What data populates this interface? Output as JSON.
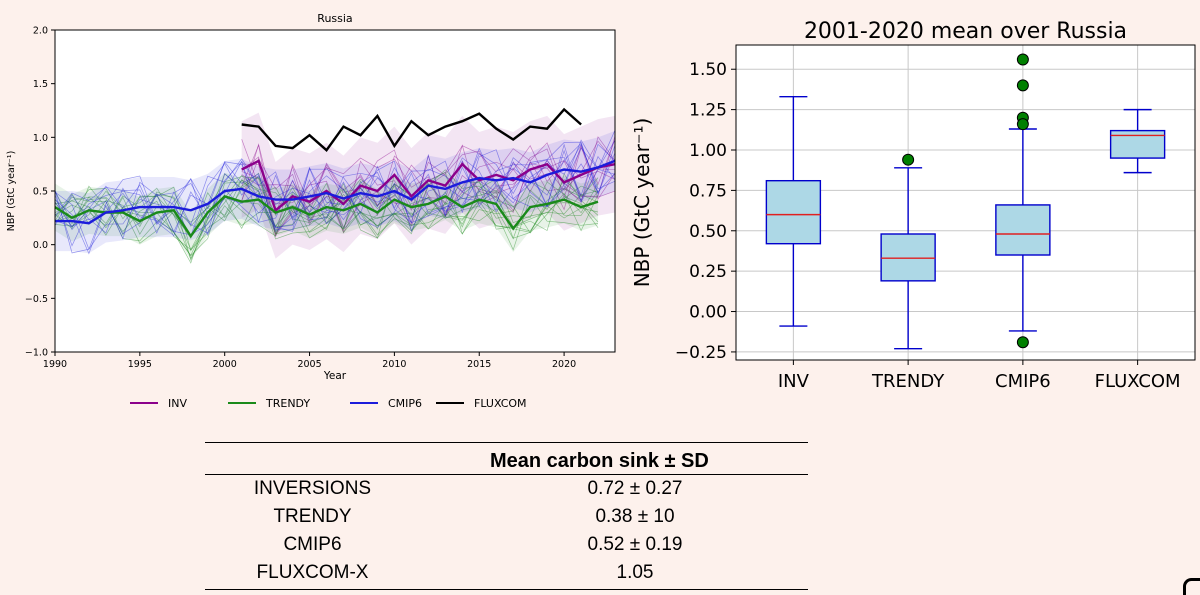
{
  "chart_data": [
    {
      "type": "line",
      "title": "Russia",
      "xlabel": "Year",
      "ylabel": "NBP (GtC year⁻¹)",
      "xlim": [
        1990,
        2023
      ],
      "ylim": [
        -1.0,
        2.0
      ],
      "xticks": [
        "1990",
        "1995",
        "2000",
        "2005",
        "2010",
        "2015",
        "2020"
      ],
      "yticks": [
        "−1.0",
        "−0.5",
        "0.0",
        "0.5",
        "1.0",
        "1.5",
        "2.0"
      ],
      "legend_position": "bottom",
      "grid": false,
      "series": [
        {
          "name": "INV",
          "color": "#8b008b",
          "x": [
            2001,
            2002,
            2003,
            2004,
            2005,
            2006,
            2007,
            2008,
            2009,
            2010,
            2011,
            2012,
            2013,
            2014,
            2015,
            2016,
            2017,
            2018,
            2019,
            2020,
            2021,
            2022,
            2023
          ],
          "values": [
            0.7,
            0.78,
            0.32,
            0.45,
            0.4,
            0.5,
            0.38,
            0.55,
            0.5,
            0.65,
            0.45,
            0.6,
            0.55,
            0.75,
            0.6,
            0.65,
            0.6,
            0.7,
            0.75,
            0.58,
            0.65,
            0.72,
            0.75
          ]
        },
        {
          "name": "TRENDY",
          "color": "#1a8a1a",
          "x": [
            1990,
            1991,
            1992,
            1993,
            1994,
            1995,
            1996,
            1997,
            1998,
            1999,
            2000,
            2001,
            2002,
            2003,
            2004,
            2005,
            2006,
            2007,
            2008,
            2009,
            2010,
            2011,
            2012,
            2013,
            2014,
            2015,
            2016,
            2017,
            2018,
            2019,
            2020,
            2021,
            2022
          ],
          "values": [
            0.35,
            0.25,
            0.32,
            0.3,
            0.3,
            0.22,
            0.3,
            0.32,
            0.08,
            0.3,
            0.45,
            0.4,
            0.42,
            0.3,
            0.35,
            0.28,
            0.35,
            0.32,
            0.38,
            0.3,
            0.42,
            0.35,
            0.38,
            0.45,
            0.35,
            0.42,
            0.38,
            0.15,
            0.35,
            0.38,
            0.42,
            0.35,
            0.4
          ]
        },
        {
          "name": "CMIP6",
          "color": "#1c1cdb",
          "x": [
            1990,
            1991,
            1992,
            1993,
            1994,
            1995,
            1996,
            1997,
            1998,
            1999,
            2000,
            2001,
            2002,
            2003,
            2004,
            2005,
            2006,
            2007,
            2008,
            2009,
            2010,
            2011,
            2012,
            2013,
            2014,
            2015,
            2016,
            2017,
            2018,
            2019,
            2020,
            2021,
            2022,
            2023
          ],
          "values": [
            0.22,
            0.22,
            0.2,
            0.3,
            0.32,
            0.35,
            0.35,
            0.35,
            0.32,
            0.38,
            0.5,
            0.52,
            0.45,
            0.42,
            0.42,
            0.45,
            0.48,
            0.43,
            0.48,
            0.45,
            0.5,
            0.42,
            0.55,
            0.52,
            0.58,
            0.62,
            0.6,
            0.62,
            0.58,
            0.65,
            0.7,
            0.68,
            0.72,
            0.78
          ]
        },
        {
          "name": "FLUXCOM",
          "color": "#000000",
          "x": [
            2001,
            2002,
            2003,
            2004,
            2005,
            2006,
            2007,
            2008,
            2009,
            2010,
            2011,
            2012,
            2013,
            2014,
            2015,
            2016,
            2017,
            2018,
            2019,
            2020,
            2021
          ],
          "values": [
            1.12,
            1.1,
            0.92,
            0.9,
            1.02,
            0.88,
            1.1,
            1.02,
            1.2,
            0.92,
            1.15,
            1.02,
            1.1,
            1.15,
            1.22,
            1.08,
            0.98,
            1.1,
            1.08,
            1.26,
            1.12
          ]
        }
      ]
    },
    {
      "type": "box",
      "title": "2001-2020 mean over Russia",
      "ylabel": "NBP (GtC year⁻¹)",
      "ylim": [
        -0.3,
        1.65
      ],
      "yticks": [
        "−0.25",
        "0.00",
        "0.25",
        "0.50",
        "0.75",
        "1.00",
        "1.25",
        "1.50"
      ],
      "grid": true,
      "categories": [
        "INV",
        "TRENDY",
        "CMIP6",
        "FLUXCOM"
      ],
      "boxes": [
        {
          "whisker_low": -0.09,
          "q1": 0.42,
          "median": 0.6,
          "q3": 0.81,
          "whisker_high": 1.33,
          "outliers": []
        },
        {
          "whisker_low": -0.23,
          "q1": 0.19,
          "median": 0.33,
          "q3": 0.48,
          "whisker_high": 0.89,
          "outliers": [
            0.94
          ]
        },
        {
          "whisker_low": -0.12,
          "q1": 0.35,
          "median": 0.48,
          "q3": 0.66,
          "whisker_high": 1.13,
          "outliers": [
            1.56,
            1.4,
            1.2,
            1.16,
            -0.19
          ]
        },
        {
          "whisker_low": 0.86,
          "q1": 0.95,
          "median": 1.09,
          "q3": 1.12,
          "whisker_high": 1.25,
          "outliers": []
        }
      ],
      "box_fill": "#add8e6",
      "box_edge": "#0000cc",
      "median_color": "#e02020",
      "outlier_color": "#008000"
    }
  ],
  "table": {
    "header": "Mean carbon sink ± SD",
    "rows": [
      {
        "name": "INVERSIONS",
        "value": "0.72 ± 0.27"
      },
      {
        "name": "TRENDY",
        "value": "0.38 ± 10"
      },
      {
        "name": "CMIP6",
        "value": "0.52 ± 0.19"
      },
      {
        "name": "FLUXCOM-X",
        "value": "1.05"
      }
    ]
  }
}
